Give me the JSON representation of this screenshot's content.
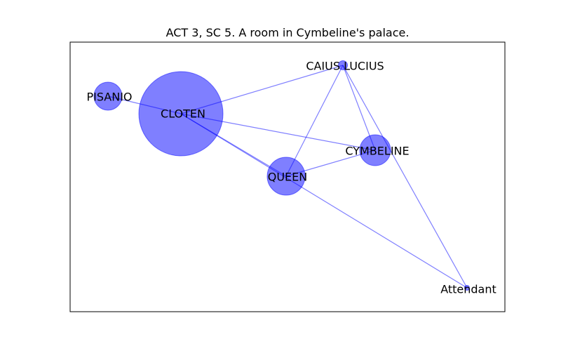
{
  "title": "ACT 3, SC 5. A room in Cymbeline's palace.",
  "colors": {
    "node_fill": "#0000ff",
    "edge_stroke": "#0000ff",
    "frame": "#000000",
    "background": "#ffffff"
  },
  "nodes": [
    {
      "id": "CLOTEN",
      "label": "CLOTEN"
    },
    {
      "id": "PISANIO",
      "label": "PISANIO"
    },
    {
      "id": "CAIUS LUCIUS",
      "label": "CAIUS LUCIUS"
    },
    {
      "id": "CYMBELINE",
      "label": "CYMBELINE"
    },
    {
      "id": "QUEEN",
      "label": "QUEEN"
    },
    {
      "id": "Attendant",
      "label": "Attendant"
    }
  ],
  "edges": [
    [
      "PISANIO",
      "CLOTEN"
    ],
    [
      "CLOTEN",
      "CAIUS LUCIUS"
    ],
    [
      "CLOTEN",
      "CYMBELINE"
    ],
    [
      "CLOTEN",
      "QUEEN"
    ],
    [
      "CLOTEN",
      "Attendant"
    ],
    [
      "CAIUS LUCIUS",
      "QUEEN"
    ],
    [
      "CAIUS LUCIUS",
      "CYMBELINE"
    ],
    [
      "CAIUS LUCIUS",
      "Attendant"
    ],
    [
      "QUEEN",
      "CYMBELINE"
    ]
  ]
}
